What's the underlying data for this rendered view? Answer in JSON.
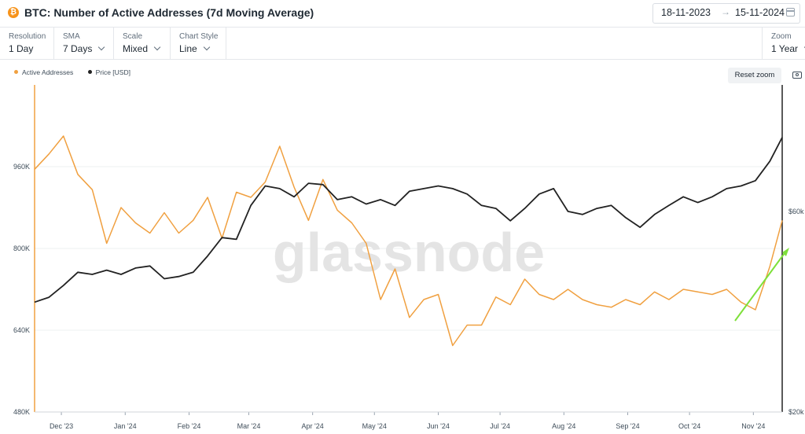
{
  "header": {
    "coin_symbol": "₿",
    "title": "BTC: Number of Active Addresses (7d Moving Average)",
    "date_from": "18-11-2023",
    "date_to": "15-11-2024",
    "date_arrow": "→"
  },
  "toolbar": {
    "resolution": {
      "label": "Resolution",
      "value": "1 Day"
    },
    "sma": {
      "label": "SMA",
      "value": "7 Days"
    },
    "scale": {
      "label": "Scale",
      "value": "Mixed"
    },
    "chart_style": {
      "label": "Chart Style",
      "value": "Line"
    },
    "zoom": {
      "label": "Zoom",
      "value": "1 Year"
    }
  },
  "reset_zoom_label": "Reset zoom",
  "camera_icon": "camera-icon",
  "colors": {
    "active_addresses": "#f0a040",
    "price": "#222222",
    "annotation_arrow": "#7ee03a",
    "grid": "#eef0f2"
  },
  "watermark": "glassnode",
  "chart_data": {
    "type": "line",
    "title": "BTC: Number of Active Addresses (7d Moving Average)",
    "legend": [
      "Active Addresses",
      "Price [USD]"
    ],
    "legend_position": "top-left",
    "grid": true,
    "x_tick_labels": [
      "Dec '23",
      "Jan '24",
      "Feb '24",
      "Mar '24",
      "Apr '24",
      "May '24",
      "Jun '24",
      "Jul '24",
      "Aug '24",
      "Sep '24",
      "Oct '24",
      "Nov '24"
    ],
    "y_left": {
      "label": "Active Addresses",
      "ticks": [
        "480K",
        "640K",
        "800K",
        "960K"
      ],
      "ylim": [
        480000,
        1120000
      ]
    },
    "y_right": {
      "label": "Price [USD]",
      "scale": "log",
      "ticks": [
        "$20k",
        "$60k"
      ],
      "ylim": [
        20000,
        120000
      ]
    },
    "x": [
      "2023-11-18",
      "2023-11-25",
      "2023-12-02",
      "2023-12-09",
      "2023-12-16",
      "2023-12-23",
      "2023-12-30",
      "2024-01-06",
      "2024-01-13",
      "2024-01-20",
      "2024-01-27",
      "2024-02-03",
      "2024-02-10",
      "2024-02-17",
      "2024-02-24",
      "2024-03-02",
      "2024-03-09",
      "2024-03-16",
      "2024-03-23",
      "2024-03-30",
      "2024-04-06",
      "2024-04-13",
      "2024-04-20",
      "2024-04-27",
      "2024-05-04",
      "2024-05-11",
      "2024-05-18",
      "2024-05-25",
      "2024-06-01",
      "2024-06-08",
      "2024-06-15",
      "2024-06-22",
      "2024-06-29",
      "2024-07-06",
      "2024-07-13",
      "2024-07-20",
      "2024-07-27",
      "2024-08-03",
      "2024-08-10",
      "2024-08-17",
      "2024-08-24",
      "2024-08-31",
      "2024-09-07",
      "2024-09-14",
      "2024-09-21",
      "2024-09-28",
      "2024-10-05",
      "2024-10-12",
      "2024-10-19",
      "2024-10-26",
      "2024-11-02",
      "2024-11-09",
      "2024-11-15"
    ],
    "series": [
      {
        "name": "Active Addresses",
        "axis": "left",
        "values": [
          955000,
          985000,
          1020000,
          945000,
          915000,
          810000,
          880000,
          850000,
          830000,
          870000,
          830000,
          855000,
          900000,
          820000,
          910000,
          900000,
          930000,
          1000000,
          920000,
          855000,
          935000,
          875000,
          850000,
          810000,
          700000,
          760000,
          665000,
          700000,
          710000,
          610000,
          650000,
          650000,
          705000,
          690000,
          740000,
          710000,
          700000,
          720000,
          700000,
          690000,
          685000,
          700000,
          690000,
          715000,
          700000,
          720000,
          715000,
          710000,
          720000,
          695000,
          680000,
          765000,
          855000
        ]
      },
      {
        "name": "Price [USD]",
        "axis": "right",
        "values": [
          36500,
          37500,
          40000,
          43000,
          42500,
          43500,
          42500,
          44000,
          44500,
          41500,
          42000,
          43000,
          47000,
          52000,
          51500,
          62000,
          69000,
          68000,
          65000,
          70000,
          69500,
          64000,
          65000,
          62500,
          64000,
          62000,
          67000,
          68000,
          69000,
          68000,
          66000,
          62000,
          61000,
          57000,
          61000,
          66000,
          68000,
          60000,
          59000,
          61000,
          62000,
          58000,
          55000,
          59000,
          62000,
          65000,
          63000,
          65000,
          68000,
          69000,
          71000,
          79000,
          90000
        ]
      }
    ],
    "annotation": "green arrow pointing up-right"
  }
}
